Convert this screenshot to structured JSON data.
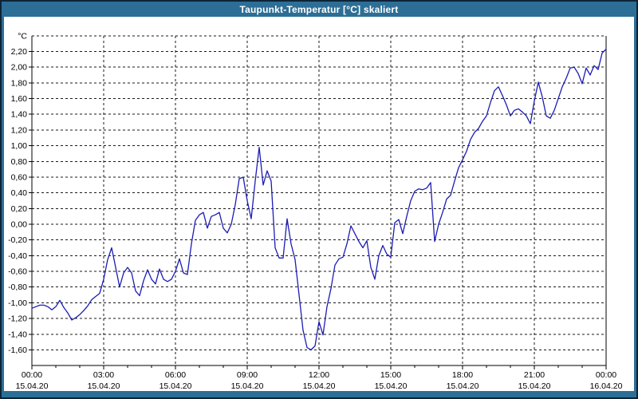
{
  "window": {
    "title": "Taupunkt-Temperatur [°C] skaliert"
  },
  "colors": {
    "frame": "#2d6e96",
    "frame_outline": "#0d2435",
    "plot_background": "#ffffff",
    "grid": "#1a1a1a",
    "axis": "#000000",
    "series_line": "#1c1cb4",
    "title_text": "#ffffff",
    "tick_text": "#000000"
  },
  "chart_data": {
    "type": "line",
    "title": "Taupunkt-Temperatur [°C] skaliert",
    "y_unit_label": "°C",
    "ylim": [
      -1.8,
      2.4
    ],
    "y_tick_labels": [
      "2,20",
      "2,00",
      "1,80",
      "1,60",
      "1,40",
      "1,20",
      "1,00",
      "0,80",
      "0,60",
      "0,40",
      "0,20",
      "0,00",
      "-0,20",
      "-0,40",
      "-0,60",
      "-0,80",
      "-1,00",
      "-1,20",
      "-1,40",
      "-1,60"
    ],
    "y_tick_values": [
      2.2,
      2.0,
      1.8,
      1.6,
      1.4,
      1.2,
      1.0,
      0.8,
      0.6,
      0.4,
      0.2,
      0.0,
      -0.2,
      -0.4,
      -0.6,
      -0.8,
      -1.0,
      -1.2,
      -1.4,
      -1.6
    ],
    "x_range_hours": [
      0,
      24
    ],
    "x_major_step_hours": 3,
    "x_minor_step_hours": 1,
    "grid": "dashed",
    "legend": "none",
    "x_ticks": [
      {
        "time": "00:00",
        "date": "15.04.20"
      },
      {
        "time": "03:00",
        "date": "15.04.20"
      },
      {
        "time": "06:00",
        "date": "15.04.20"
      },
      {
        "time": "09:00",
        "date": "15.04.20"
      },
      {
        "time": "12:00",
        "date": "15.04.20"
      },
      {
        "time": "15:00",
        "date": "15.04.20"
      },
      {
        "time": "18:00",
        "date": "15.04.20"
      },
      {
        "time": "21:00",
        "date": "15.04.20"
      },
      {
        "time": "00:00",
        "date": "16.04.20"
      }
    ],
    "series": [
      {
        "name": "Taupunkt-Temperatur",
        "start_hour": 0,
        "step_minutes": 10,
        "values": [
          -1.07,
          -1.05,
          -1.03,
          -1.03,
          -1.05,
          -1.09,
          -1.05,
          -0.97,
          -1.06,
          -1.13,
          -1.22,
          -1.19,
          -1.15,
          -1.1,
          -1.04,
          -0.96,
          -0.92,
          -0.88,
          -0.7,
          -0.45,
          -0.3,
          -0.55,
          -0.8,
          -0.62,
          -0.55,
          -0.62,
          -0.85,
          -0.91,
          -0.72,
          -0.58,
          -0.7,
          -0.76,
          -0.57,
          -0.7,
          -0.73,
          -0.7,
          -0.6,
          -0.44,
          -0.62,
          -0.64,
          -0.25,
          0.05,
          0.12,
          0.15,
          -0.05,
          0.1,
          0.12,
          0.15,
          -0.05,
          -0.11,
          0.0,
          0.25,
          0.58,
          0.6,
          0.3,
          0.07,
          0.55,
          0.98,
          0.5,
          0.68,
          0.55,
          -0.3,
          -0.43,
          -0.43,
          0.07,
          -0.25,
          -0.45,
          -0.9,
          -1.35,
          -1.57,
          -1.6,
          -1.55,
          -1.24,
          -1.41,
          -1.05,
          -0.82,
          -0.52,
          -0.44,
          -0.42,
          -0.25,
          -0.02,
          -0.12,
          -0.22,
          -0.3,
          -0.21,
          -0.55,
          -0.7,
          -0.4,
          -0.27,
          -0.38,
          -0.42,
          0.02,
          0.06,
          -0.12,
          0.1,
          0.3,
          0.42,
          0.45,
          0.44,
          0.46,
          0.53,
          -0.22,
          0.0,
          0.15,
          0.32,
          0.37,
          0.55,
          0.72,
          0.82,
          0.93,
          1.08,
          1.17,
          1.22,
          1.31,
          1.38,
          1.55,
          1.7,
          1.75,
          1.64,
          1.52,
          1.38,
          1.45,
          1.47,
          1.43,
          1.38,
          1.28,
          1.57,
          1.81,
          1.62,
          1.38,
          1.35,
          1.45,
          1.6,
          1.75,
          1.86,
          1.99,
          2.0,
          1.92,
          1.79,
          1.99,
          1.9,
          2.02,
          1.97,
          2.18,
          2.23
        ]
      }
    ]
  }
}
